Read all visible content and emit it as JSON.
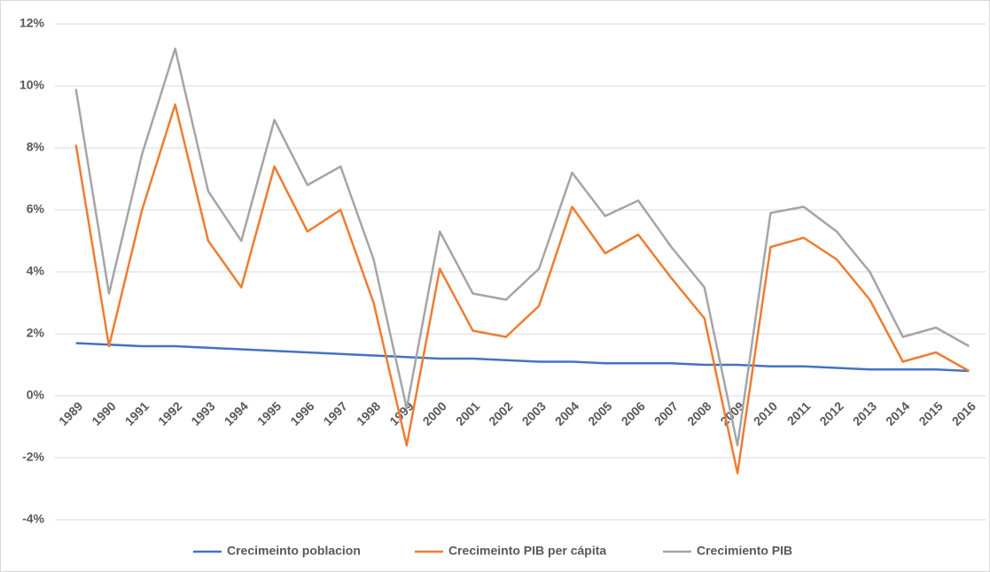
{
  "chart_data": {
    "type": "line",
    "categories": [
      "1989",
      "1990",
      "1991",
      "1992",
      "1993",
      "1994",
      "1995",
      "1996",
      "1997",
      "1998",
      "1999",
      "2000",
      "2001",
      "2002",
      "2003",
      "2004",
      "2005",
      "2006",
      "2007",
      "2008",
      "2009",
      "2010",
      "2011",
      "2012",
      "2013",
      "2014",
      "2015",
      "2016"
    ],
    "series": [
      {
        "name": "Crecimeinto poblacion",
        "color": "#4472c4",
        "values": [
          1.7,
          1.65,
          1.6,
          1.6,
          1.55,
          1.5,
          1.45,
          1.4,
          1.35,
          1.3,
          1.25,
          1.2,
          1.2,
          1.15,
          1.1,
          1.1,
          1.05,
          1.05,
          1.05,
          1.0,
          1.0,
          0.95,
          0.95,
          0.9,
          0.85,
          0.85,
          0.85,
          0.8
        ]
      },
      {
        "name": "Crecimeinto PIB per cápita",
        "color": "#ed7d31",
        "values": [
          8.1,
          1.6,
          6.0,
          9.4,
          5.0,
          3.5,
          7.4,
          5.3,
          6.0,
          3.0,
          -1.6,
          4.1,
          2.1,
          1.9,
          2.9,
          6.1,
          4.6,
          5.2,
          3.8,
          2.5,
          -2.5,
          4.8,
          5.1,
          4.4,
          3.1,
          1.1,
          1.4,
          0.8
        ]
      },
      {
        "name": "Crecimiento PIB",
        "color": "#a5a5a5",
        "values": [
          9.9,
          3.3,
          7.8,
          11.2,
          6.6,
          5.0,
          8.9,
          6.8,
          7.4,
          4.4,
          -0.4,
          5.3,
          3.3,
          3.1,
          4.1,
          7.2,
          5.8,
          6.3,
          4.8,
          3.5,
          -1.6,
          5.9,
          6.1,
          5.3,
          4.0,
          1.9,
          2.2,
          1.6
        ]
      }
    ],
    "ylim": [
      -4,
      12
    ],
    "yticks": [
      {
        "value": -4,
        "label": "-4%"
      },
      {
        "value": -2,
        "label": "-2%"
      },
      {
        "value": 0,
        "label": "0%"
      },
      {
        "value": 2,
        "label": "2%"
      },
      {
        "value": 4,
        "label": "4%"
      },
      {
        "value": 6,
        "label": "6%"
      },
      {
        "value": 8,
        "label": "8%"
      },
      {
        "value": 10,
        "label": "10%"
      },
      {
        "value": 12,
        "label": "12%"
      }
    ],
    "grid": true,
    "legend": "bottom"
  }
}
